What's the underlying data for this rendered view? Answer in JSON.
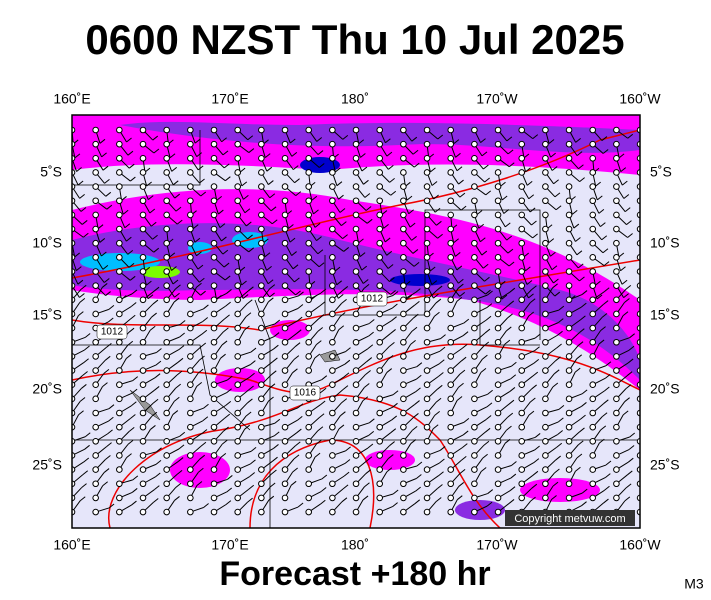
{
  "header": {
    "title": "0600 NZST Thu 10 Jul 2025"
  },
  "map": {
    "lon_labels": [
      "160˚E",
      "170˚E",
      "180˚",
      "170˚W",
      "160˚W"
    ],
    "lat_labels": [
      "5˚S",
      "10˚S",
      "15˚S",
      "20˚S",
      "25˚S"
    ],
    "isobar_labels": [
      "1012",
      "1012",
      "1016"
    ],
    "copyright": "Copyright metvuw.com"
  },
  "footer": {
    "text": "Forecast +180 hr",
    "corner_label": "M3"
  }
}
